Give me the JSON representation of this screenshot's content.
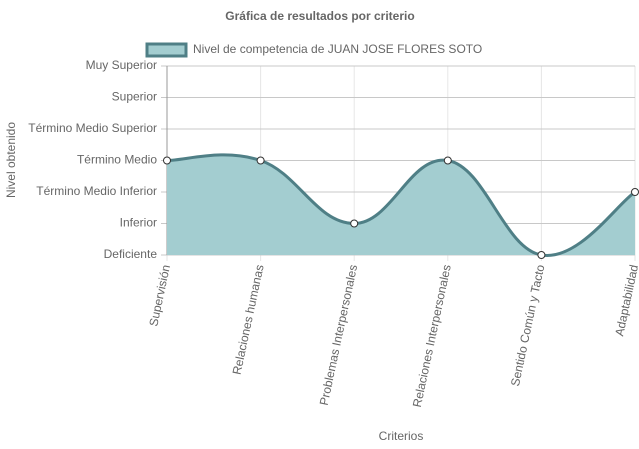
{
  "chart_data": {
    "type": "area",
    "title": "Gráfica de resultados por criterio",
    "x_label": "Criterios",
    "y_label": "Nivel obtenido",
    "categories": [
      "Supervisión",
      "Relaciones humanas",
      "Problemas Interpersonales",
      "Relaciones Interpersonales",
      "Sentido Común y Tacto",
      "Adaptabilidad"
    ],
    "series": [
      {
        "name": "Nivel de competencia de JUAN JOSE FLORES SOTO",
        "color": "#4f7f86",
        "fill": "#a3cdd0",
        "values": [
          3,
          3,
          1,
          3,
          0,
          2
        ]
      }
    ],
    "ylim": [
      0,
      6
    ],
    "yticks": [
      {
        "value": 0,
        "label": "Deficiente"
      },
      {
        "value": 1,
        "label": "Inferior"
      },
      {
        "value": 2,
        "label": "Término Medio Inferior"
      },
      {
        "value": 3,
        "label": "Término Medio"
      },
      {
        "value": 4,
        "label": "Término Medio Superior"
      },
      {
        "value": 5,
        "label": "Superior"
      },
      {
        "value": 6,
        "label": "Muy Superior"
      }
    ],
    "grid": true
  }
}
